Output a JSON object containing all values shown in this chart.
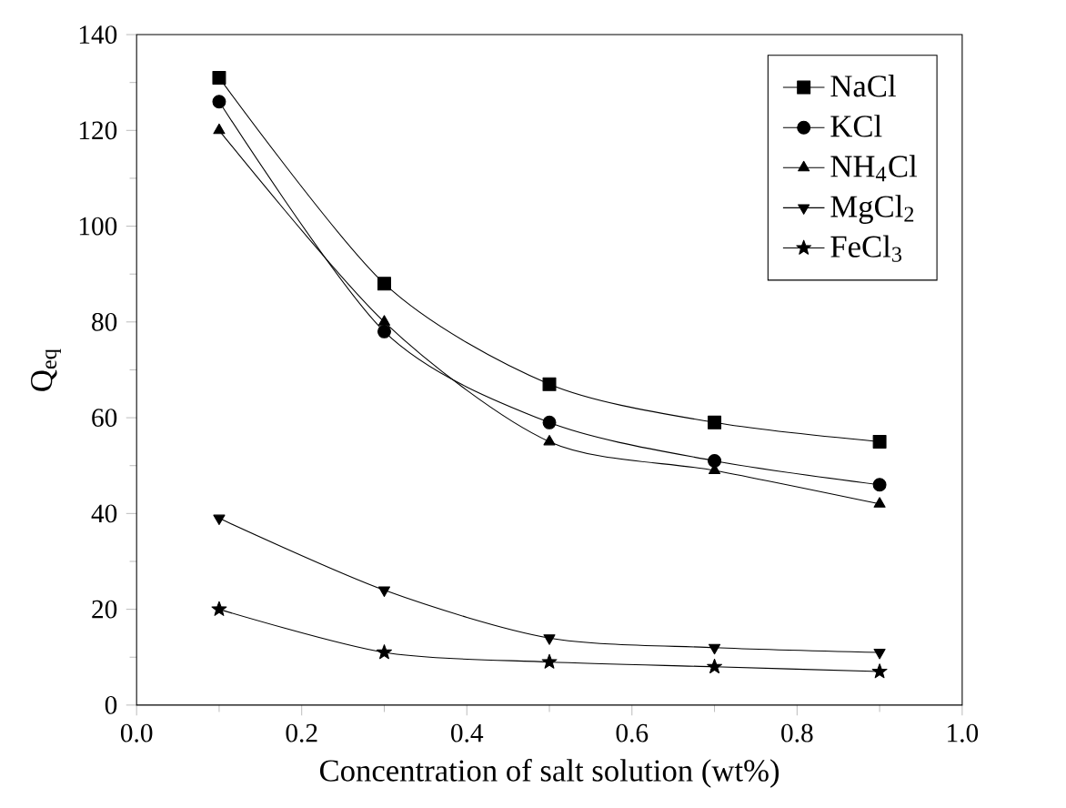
{
  "chart_data": {
    "type": "line",
    "xlabel": "Concentration of salt solution (wt%)",
    "ylabel": "Q$_{eq}$",
    "x": [
      0.1,
      0.3,
      0.5,
      0.7,
      0.9
    ],
    "series": [
      {
        "name": "NaCl",
        "color": "#000000",
        "marker": "square",
        "values": [
          131,
          88,
          67,
          59,
          55
        ]
      },
      {
        "name": "KCl",
        "color": "#000000",
        "marker": "circle",
        "values": [
          126,
          78,
          59,
          51,
          46
        ]
      },
      {
        "name": "NH$_{4}$Cl",
        "color": "#000000",
        "marker": "triangle",
        "values": [
          120,
          80,
          55,
          49,
          42
        ]
      },
      {
        "name": "MgCl$_{2}$",
        "color": "#000000",
        "marker": "triangle-down",
        "values": [
          39,
          24,
          14,
          12,
          11
        ]
      },
      {
        "name": "FeCl$_{3}$",
        "color": "#000000",
        "marker": "star",
        "values": [
          20,
          11,
          9,
          8,
          7
        ]
      }
    ],
    "xlim": [
      0.0,
      1.0
    ],
    "xticks": [
      {
        "value": 0,
        "label": "0.0"
      },
      0.2,
      0.4,
      0.6,
      0.8,
      {
        "value": 1,
        "label": "1.0"
      }
    ],
    "ylim": [
      0,
      140
    ],
    "yticks": [
      0,
      20,
      40,
      60,
      80,
      100,
      120,
      140
    ],
    "legend": "top right",
    "grid": false,
    "line_style": "solid"
  }
}
